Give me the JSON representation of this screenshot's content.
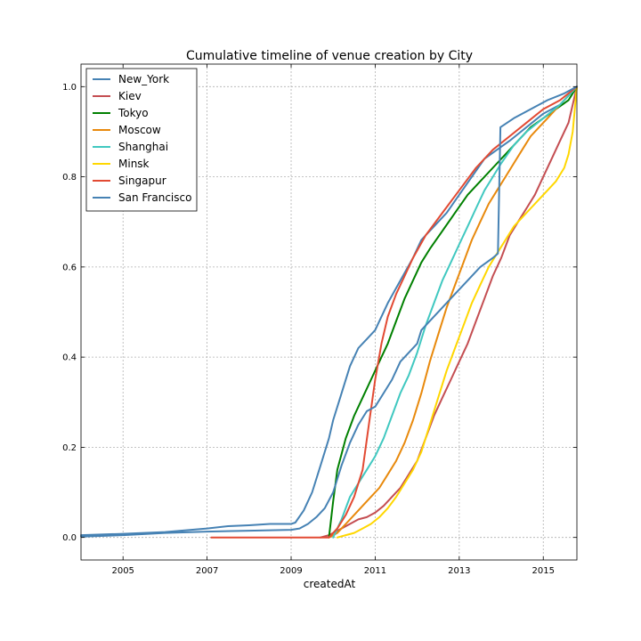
{
  "chart_data": {
    "type": "line",
    "title": "Cumulative timeline of venue creation by City",
    "xlabel": "createdAt",
    "ylabel": "",
    "xlim": [
      2004.0,
      2015.8
    ],
    "ylim": [
      -0.05,
      1.05
    ],
    "x_ticks": [
      2005,
      2007,
      2009,
      2011,
      2013,
      2015
    ],
    "x_tick_labels": [
      "2005",
      "2007",
      "2009",
      "2011",
      "2013",
      "2015"
    ],
    "y_ticks": [
      0.0,
      0.2,
      0.4,
      0.6,
      0.8,
      1.0
    ],
    "y_tick_labels": [
      "0.0",
      "0.2",
      "0.4",
      "0.6",
      "0.8",
      "1.0"
    ],
    "grid": true,
    "legend_position": "top-left",
    "series": [
      {
        "name": "New_York",
        "color": "#4682b4",
        "x": [
          2004.0,
          2005.0,
          2006.0,
          2007.0,
          2007.5,
          2008.0,
          2008.5,
          2009.0,
          2009.1,
          2009.3,
          2009.5,
          2009.7,
          2009.9,
          2010.0,
          2010.2,
          2010.4,
          2010.6,
          2010.8,
          2011.0,
          2011.3,
          2011.6,
          2011.9,
          2012.1,
          2012.4,
          2012.7,
          2013.0,
          2013.3,
          2013.6,
          2013.9,
          2014.2,
          2014.6,
          2015.0,
          2015.4,
          2015.8
        ],
        "y": [
          0.005,
          0.008,
          0.012,
          0.02,
          0.025,
          0.027,
          0.03,
          0.03,
          0.033,
          0.06,
          0.1,
          0.16,
          0.22,
          0.26,
          0.32,
          0.38,
          0.42,
          0.44,
          0.46,
          0.52,
          0.57,
          0.62,
          0.66,
          0.69,
          0.72,
          0.76,
          0.8,
          0.84,
          0.86,
          0.88,
          0.91,
          0.94,
          0.96,
          1.0
        ]
      },
      {
        "name": "Kiev",
        "color": "#c44e52",
        "x": [
          2009.7,
          2009.9,
          2010.0,
          2010.2,
          2010.4,
          2010.6,
          2010.8,
          2011.0,
          2011.2,
          2011.4,
          2011.6,
          2011.8,
          2012.0,
          2012.2,
          2012.4,
          2012.6,
          2012.8,
          2013.0,
          2013.2,
          2013.4,
          2013.6,
          2013.8,
          2014.0,
          2014.2,
          2014.4,
          2014.6,
          2014.8,
          2015.0,
          2015.2,
          2015.4,
          2015.6,
          2015.8
        ],
        "y": [
          0.0,
          0.005,
          0.01,
          0.02,
          0.03,
          0.04,
          0.045,
          0.055,
          0.07,
          0.09,
          0.11,
          0.14,
          0.17,
          0.22,
          0.27,
          0.31,
          0.35,
          0.39,
          0.43,
          0.48,
          0.53,
          0.58,
          0.62,
          0.67,
          0.7,
          0.73,
          0.76,
          0.8,
          0.84,
          0.88,
          0.92,
          1.0
        ]
      },
      {
        "name": "Tokyo",
        "color": "#008000",
        "x": [
          2009.9,
          2010.0,
          2010.1,
          2010.3,
          2010.5,
          2010.7,
          2010.9,
          2011.1,
          2011.3,
          2011.5,
          2011.7,
          2011.9,
          2012.1,
          2012.3,
          2012.6,
          2012.9,
          2013.2,
          2013.5,
          2013.8,
          2014.1,
          2014.4,
          2014.7,
          2015.0,
          2015.3,
          2015.6,
          2015.8
        ],
        "y": [
          0.0,
          0.08,
          0.15,
          0.22,
          0.27,
          0.31,
          0.35,
          0.39,
          0.43,
          0.48,
          0.53,
          0.57,
          0.61,
          0.64,
          0.68,
          0.72,
          0.76,
          0.79,
          0.82,
          0.85,
          0.88,
          0.91,
          0.93,
          0.95,
          0.97,
          1.0
        ]
      },
      {
        "name": "Moscow",
        "color": "#e8890c",
        "x": [
          2009.9,
          2010.1,
          2010.3,
          2010.5,
          2010.7,
          2010.9,
          2011.1,
          2011.3,
          2011.5,
          2011.7,
          2011.9,
          2012.1,
          2012.3,
          2012.5,
          2012.7,
          2012.9,
          2013.1,
          2013.3,
          2013.5,
          2013.7,
          2013.9,
          2014.1,
          2014.3,
          2014.5,
          2014.7,
          2014.9,
          2015.1,
          2015.3,
          2015.5,
          2015.8
        ],
        "y": [
          0.0,
          0.01,
          0.03,
          0.05,
          0.07,
          0.09,
          0.11,
          0.14,
          0.17,
          0.21,
          0.26,
          0.32,
          0.39,
          0.45,
          0.51,
          0.56,
          0.61,
          0.66,
          0.7,
          0.74,
          0.77,
          0.8,
          0.83,
          0.86,
          0.89,
          0.91,
          0.93,
          0.95,
          0.97,
          1.0
        ]
      },
      {
        "name": "Shanghai",
        "color": "#40c8c0",
        "x": [
          2010.0,
          2010.2,
          2010.4,
          2010.6,
          2010.8,
          2011.0,
          2011.2,
          2011.4,
          2011.6,
          2011.8,
          2012.0,
          2012.2,
          2012.4,
          2012.6,
          2012.8,
          2013.0,
          2013.2,
          2013.4,
          2013.6,
          2013.8,
          2014.0,
          2014.3,
          2014.6,
          2015.0,
          2015.4,
          2015.8
        ],
        "y": [
          0.0,
          0.04,
          0.09,
          0.12,
          0.15,
          0.18,
          0.22,
          0.27,
          0.32,
          0.36,
          0.41,
          0.47,
          0.52,
          0.57,
          0.61,
          0.65,
          0.69,
          0.73,
          0.77,
          0.8,
          0.83,
          0.87,
          0.9,
          0.93,
          0.96,
          1.0
        ]
      },
      {
        "name": "Minsk",
        "color": "#ffd700",
        "x": [
          2010.1,
          2010.3,
          2010.5,
          2010.7,
          2010.9,
          2011.1,
          2011.3,
          2011.5,
          2011.7,
          2011.9,
          2012.1,
          2012.3,
          2012.5,
          2012.7,
          2012.9,
          2013.1,
          2013.3,
          2013.5,
          2013.7,
          2013.9,
          2014.1,
          2014.3,
          2014.5,
          2014.7,
          2014.9,
          2015.1,
          2015.3,
          2015.5,
          2015.6,
          2015.7,
          2015.8
        ],
        "y": [
          0.0,
          0.005,
          0.01,
          0.02,
          0.03,
          0.045,
          0.065,
          0.09,
          0.12,
          0.15,
          0.19,
          0.25,
          0.31,
          0.37,
          0.42,
          0.47,
          0.52,
          0.56,
          0.6,
          0.63,
          0.66,
          0.69,
          0.71,
          0.73,
          0.75,
          0.77,
          0.79,
          0.82,
          0.85,
          0.9,
          1.0
        ]
      },
      {
        "name": "Singapur",
        "color": "#e24a33",
        "x": [
          2007.1,
          2008.0,
          2009.0,
          2009.9,
          2010.1,
          2010.3,
          2010.5,
          2010.7,
          2010.85,
          2011.0,
          2011.15,
          2011.3,
          2011.5,
          2011.7,
          2011.9,
          2012.2,
          2012.6,
          2013.0,
          2013.4,
          2013.8,
          2014.2,
          2014.6,
          2015.0,
          2015.4,
          2015.8
        ],
        "y": [
          0.0,
          0.0,
          0.0,
          0.0,
          0.02,
          0.05,
          0.09,
          0.15,
          0.25,
          0.35,
          0.43,
          0.49,
          0.54,
          0.58,
          0.62,
          0.67,
          0.72,
          0.77,
          0.82,
          0.86,
          0.89,
          0.92,
          0.95,
          0.97,
          1.0
        ]
      },
      {
        "name": "San Francisco",
        "color": "#4682b4",
        "x": [
          2004.0,
          2005.0,
          2006.0,
          2007.0,
          2008.0,
          2009.0,
          2009.2,
          2009.4,
          2009.6,
          2009.8,
          2010.0,
          2010.2,
          2010.4,
          2010.6,
          2010.8,
          2011.0,
          2011.2,
          2011.4,
          2011.6,
          2011.8,
          2012.0,
          2012.1,
          2012.3,
          2012.6,
          2012.9,
          2013.2,
          2013.5,
          2013.8,
          2013.92,
          2013.98,
          2014.3,
          2014.7,
          2015.1,
          2015.5,
          2015.8
        ],
        "y": [
          0.002,
          0.005,
          0.01,
          0.013,
          0.015,
          0.017,
          0.02,
          0.03,
          0.045,
          0.065,
          0.1,
          0.16,
          0.21,
          0.25,
          0.28,
          0.29,
          0.32,
          0.35,
          0.39,
          0.41,
          0.43,
          0.46,
          0.48,
          0.51,
          0.54,
          0.57,
          0.6,
          0.62,
          0.63,
          0.91,
          0.93,
          0.95,
          0.97,
          0.985,
          1.0
        ]
      }
    ]
  }
}
